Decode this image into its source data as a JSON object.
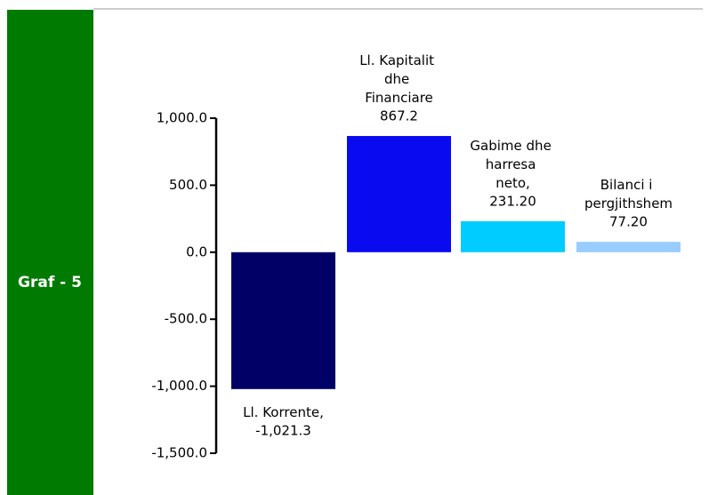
{
  "sidebar": "Graf - 5",
  "chart_data": {
    "type": "bar",
    "categories": [
      "Ll. Korrente,",
      "Ll. Kapitalit dhe Financiare",
      "Gabime dhe harresa neto,",
      "Bilanci i pergjithshem"
    ],
    "values": [
      -1021.3,
      867.2,
      231.2,
      77.2
    ],
    "value_labels": [
      "-1,021.3",
      "867.2",
      "231.20",
      "77.20"
    ],
    "colors": [
      "#000066",
      "#0a0af0",
      "#00ccff",
      "#99ccff"
    ],
    "ylim": [
      -1500,
      1000
    ],
    "yticks": [
      {
        "value": -1500,
        "label": "-1,500.0"
      },
      {
        "value": -1000,
        "label": "-1,000.0"
      },
      {
        "value": -500,
        "label": "-500.0"
      },
      {
        "value": 0,
        "label": "0.0"
      },
      {
        "value": 500,
        "label": "500.0"
      },
      {
        "value": 1000,
        "label": "1,000.0"
      }
    ]
  }
}
